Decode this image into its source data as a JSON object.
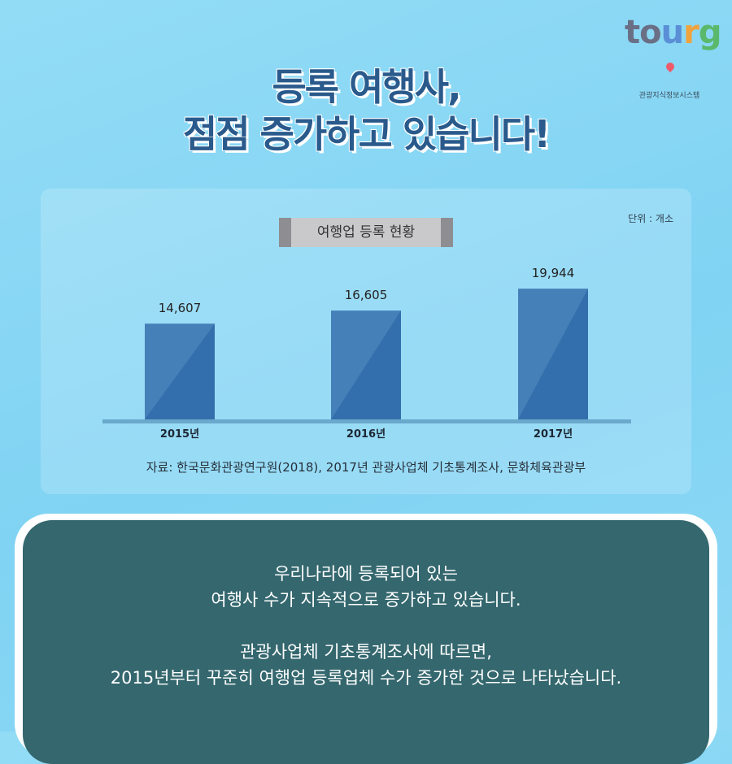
{
  "logo": {
    "letters": [
      "to",
      "u",
      "r",
      "g"
    ],
    "subtitle": "관광지식정보시스템"
  },
  "headline": {
    "line1": "등록 여행사,",
    "line2": "점점 증가하고 있습니다!"
  },
  "unit_label": "단위 : 개소",
  "chart_data": {
    "type": "bar",
    "title": "여행업 등록 현황",
    "categories": [
      "2015년",
      "2016년",
      "2017년"
    ],
    "values": [
      14607,
      16605,
      19944
    ],
    "value_labels": [
      "14,607",
      "16,605",
      "19,944"
    ],
    "xlabel": "",
    "ylabel": "",
    "ylim": [
      0,
      22000
    ],
    "grid": false,
    "colors": {
      "bar": "#4580b8",
      "bar_shade": "#336fac",
      "baseline": "#6aa8cc"
    }
  },
  "source": "자료: 한국문화관광연구원(2018), 2017년 관광사업체 기초통계조사, 문화체육관광부",
  "message": {
    "paragraph1": [
      "우리나라에 등록되어 있는",
      "여행사 수가 지속적으로 증가하고 있습니다."
    ],
    "paragraph2": [
      "관광사업체 기초통계조사에 따르면,",
      "2015년부터 꾸준히 여행업 등록업체 수가 증가한 것으로 나타났습니다."
    ]
  }
}
